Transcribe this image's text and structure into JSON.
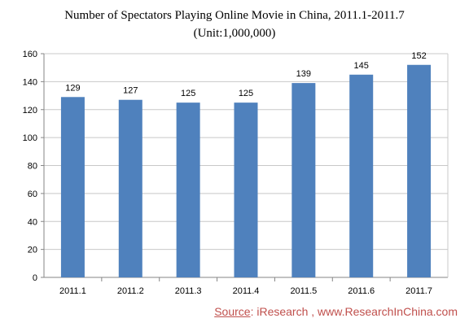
{
  "chart_data": {
    "type": "bar",
    "title": "Number of Spectators Playing Online Movie in China, 2011.1-2011.7",
    "subtitle": "(Unit:1,000,000)",
    "categories": [
      "2011.1",
      "2011.2",
      "2011.3",
      "2011.4",
      "2011.5",
      "2011.6",
      "2011.7"
    ],
    "values": [
      129,
      127,
      125,
      125,
      139,
      145,
      152
    ],
    "ylim": [
      0,
      160
    ],
    "yticks": [
      0,
      20,
      40,
      60,
      80,
      100,
      120,
      140,
      160
    ],
    "grid": true,
    "bar_color": "#4f81bd",
    "legend": "none"
  },
  "source": {
    "label": "Source",
    "text": ":  iResearch , www.ResearchInChina.com"
  }
}
